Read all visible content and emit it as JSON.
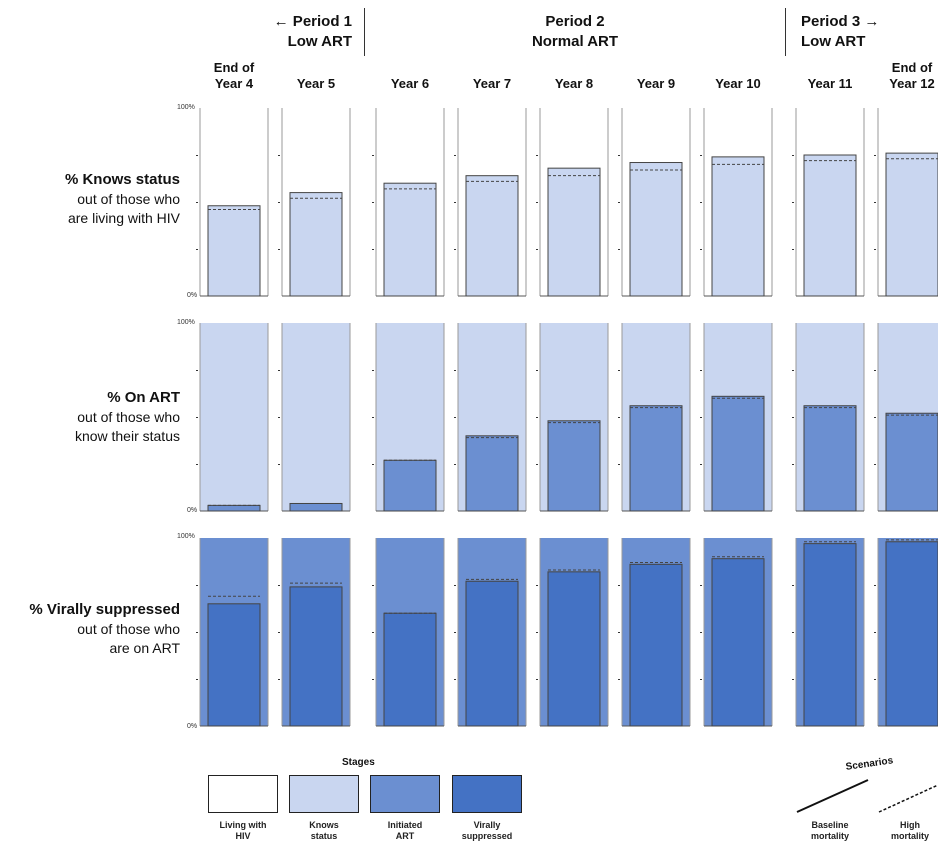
{
  "periods": [
    {
      "line1": "← Period 1",
      "line2": "Low ART"
    },
    {
      "line1": "Period 2",
      "line2": "Normal ART"
    },
    {
      "line1": "Period 3 →",
      "line2": "Low ART"
    }
  ],
  "rows": [
    {
      "title": "% Knows status",
      "sub1": "out of those who",
      "sub2": "are living with HIV",
      "top_label": "100%",
      "bottom_label": "0%"
    },
    {
      "title": "% On ART",
      "sub1": "out of those who",
      "sub2": "know their status",
      "top_label": "100%",
      "bottom_label": "0%"
    },
    {
      "title": "% Virally suppressed",
      "sub1": "out of those who",
      "sub2": "are on ART",
      "top_label": "100%",
      "bottom_label": "0%"
    }
  ],
  "legend": {
    "stages_title": "Stages",
    "stages": [
      {
        "label1": "Living with",
        "label2": "HIV",
        "color": "#ffffff"
      },
      {
        "label1": "Knows",
        "label2": "status",
        "color": "#c9d6f0"
      },
      {
        "label1": "Initiated",
        "label2": "ART",
        "color": "#6b8fd1"
      },
      {
        "label1": "Virally",
        "label2": "suppressed",
        "color": "#4472c4"
      }
    ],
    "scenarios_title": "Scenarios",
    "scenarios": [
      {
        "label1": "Baseline",
        "label2": "mortality",
        "style": "solid"
      },
      {
        "label1": "High",
        "label2": "mortality",
        "style": "dashed"
      }
    ]
  },
  "chart_data": {
    "type": "bar",
    "categories": [
      {
        "line1": "End of",
        "line2": "Year 4"
      },
      {
        "line1": "",
        "line2": "Year 5"
      },
      {
        "line1": "",
        "line2": "Year 6"
      },
      {
        "line1": "",
        "line2": "Year 7"
      },
      {
        "line1": "",
        "line2": "Year 8"
      },
      {
        "line1": "",
        "line2": "Year 9"
      },
      {
        "line1": "",
        "line2": "Year 10"
      },
      {
        "line1": "",
        "line2": "Year 11"
      },
      {
        "line1": "End of",
        "line2": "Year 12"
      }
    ],
    "ylim": [
      0,
      100
    ],
    "colors": {
      "background_levels": [
        "#ffffff",
        "#c9d6f0",
        "#6b8fd1"
      ],
      "bar_levels": [
        "#c9d6f0",
        "#6b8fd1",
        "#4472c4"
      ]
    },
    "series": [
      {
        "row": "% Knows status",
        "baseline": [
          48,
          55,
          60,
          64,
          68,
          71,
          74,
          75,
          76
        ],
        "high_mortality": [
          46,
          52,
          57,
          61,
          64,
          67,
          70,
          72,
          73
        ]
      },
      {
        "row": "% On ART",
        "baseline": [
          3,
          4,
          27,
          40,
          48,
          56,
          61,
          56,
          52
        ],
        "high_mortality": [
          3,
          4,
          27,
          39,
          47,
          55,
          60,
          55,
          51
        ]
      },
      {
        "row": "% Virally suppressed",
        "baseline": [
          65,
          74,
          60,
          77,
          82,
          86,
          89,
          97,
          98
        ],
        "high_mortality": [
          69,
          76,
          60,
          78,
          83,
          87,
          90,
          98,
          99
        ]
      }
    ]
  }
}
